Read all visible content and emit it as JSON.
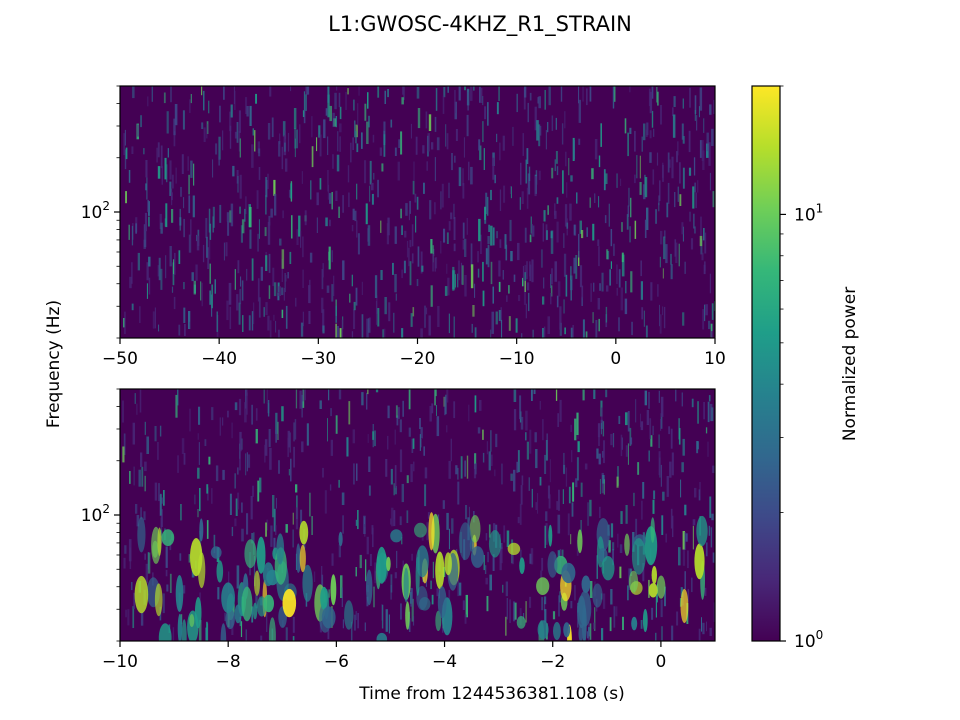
{
  "figure": {
    "title": "L1:GWOSC-4KHZ_R1_STRAIN",
    "ylabel": "Frequency (Hz)",
    "xlabel": "Time from 1244536381.108 (s)",
    "colorbar_label": "Normalized power"
  },
  "chart_data": [
    {
      "type": "heatmap",
      "panel": "top",
      "x_range": [
        -50,
        10
      ],
      "y_range_hz": [
        20,
        500
      ],
      "y_scale": "log",
      "x_ticks": [
        -50,
        -40,
        -30,
        -20,
        -10,
        0,
        10
      ],
      "x_tick_labels": [
        "−50",
        "−40",
        "−30",
        "−20",
        "−10",
        "0",
        "10"
      ],
      "y_tick_labels": [
        {
          "base": "10",
          "exp": "2",
          "value": 100
        }
      ],
      "description": "Q-transform spectrogram; mostly noise at ~1 normalized power with short vertical streaks"
    },
    {
      "type": "heatmap",
      "panel": "bottom",
      "x_range": [
        -10,
        1
      ],
      "y_range_hz": [
        20,
        500
      ],
      "y_scale": "log",
      "x_ticks": [
        -10,
        -8,
        -6,
        -4,
        -2,
        0
      ],
      "x_tick_labels": [
        "−10",
        "−8",
        "−6",
        "−4",
        "−2",
        "0"
      ],
      "y_tick_labels": [
        {
          "base": "10",
          "exp": "2",
          "value": 100
        }
      ],
      "description": "Zoomed spectrogram; brighter blobs at low frequency (below ~60 Hz)"
    }
  ],
  "colorbar": {
    "scale": "log",
    "range": [
      1,
      20
    ],
    "colormap": "viridis",
    "tick_labels": [
      {
        "base": "10",
        "exp": "0",
        "value": 1
      },
      {
        "base": "10",
        "exp": "1",
        "value": 10
      }
    ],
    "colors": [
      "#440154",
      "#482878",
      "#3e4989",
      "#31688e",
      "#26828e",
      "#1f9e89",
      "#35b779",
      "#6ece58",
      "#b5de2b",
      "#fde725"
    ]
  }
}
